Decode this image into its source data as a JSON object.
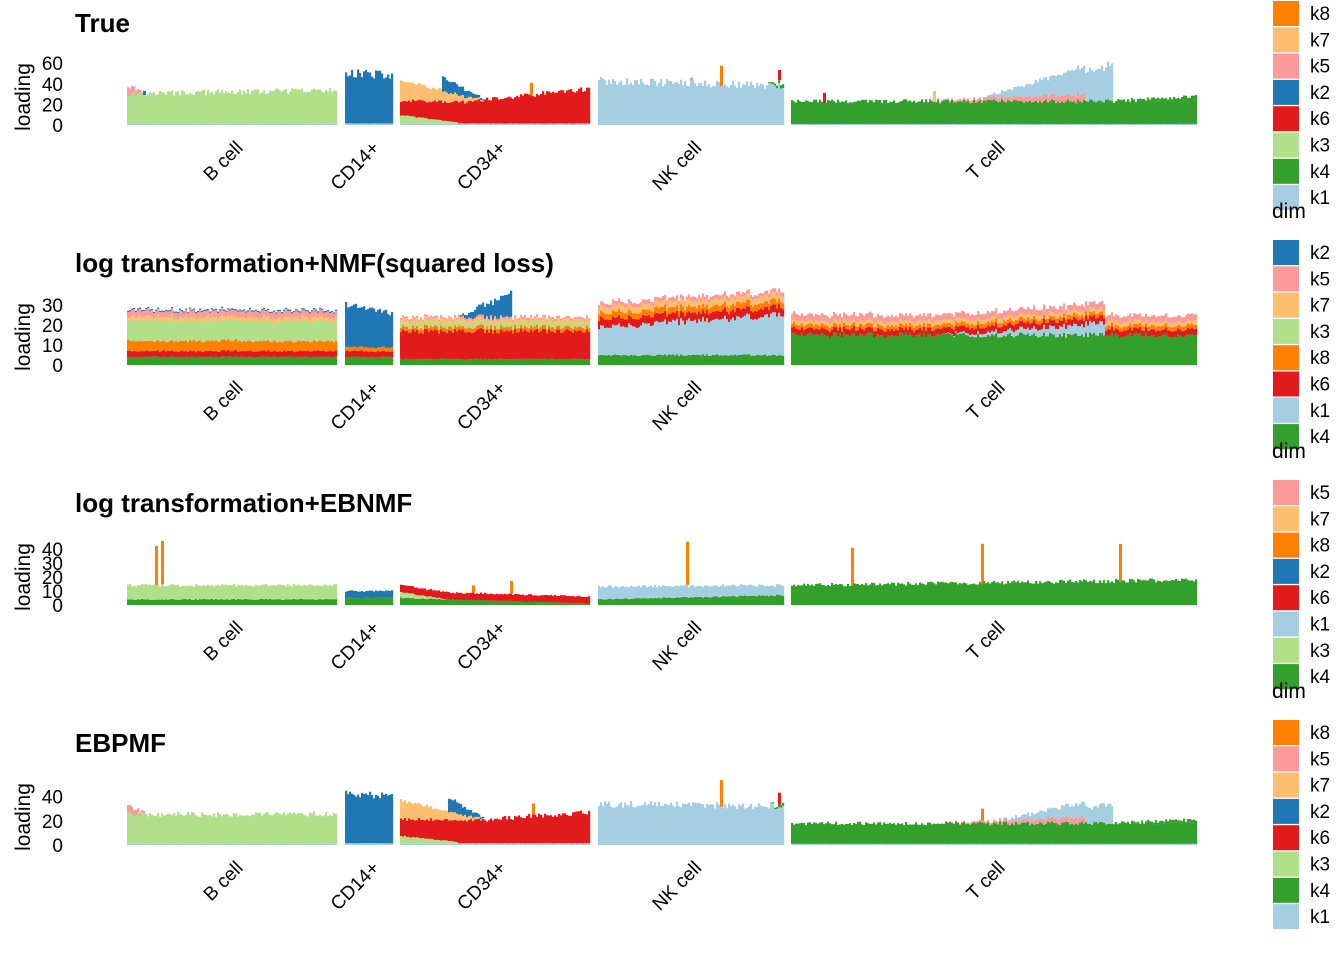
{
  "colors": {
    "k1": "#a6cee3",
    "k2": "#1f78b4",
    "k3": "#b2df8a",
    "k4": "#33a02c",
    "k5": "#fb9a99",
    "k6": "#e31a1c",
    "k7": "#fdbf6f",
    "k8": "#ff7f00"
  },
  "legend_title": "dim",
  "chart_data": [
    {
      "type": "bar",
      "stacked": true,
      "title": "True",
      "ylabel": "loading",
      "yticks": [
        "60",
        "40",
        "20",
        "0"
      ],
      "ylim": [
        0,
        68
      ],
      "groups": [
        "B cell",
        "CD14+",
        "CD34+",
        "NK cell",
        "T cell"
      ],
      "series_order": [
        "k1",
        "k4",
        "k3",
        "k6",
        "k2",
        "k5",
        "k7",
        "k8"
      ],
      "legend": [
        "k8",
        "k7",
        "k5",
        "k2",
        "k6",
        "k3",
        "k4",
        "k1"
      ],
      "group_profiles": {
        "B cell": [
          {
            "k": "k1",
            "v": 1.5
          },
          {
            "k": "k3",
            "v": [
              29,
              32
            ]
          },
          {
            "k": "k5",
            "v": [
              9,
              0
            ],
            "until": 0.08
          }
        ],
        "CD14+": [
          {
            "k": "k1",
            "v": 1.5
          },
          {
            "k": "k2",
            "v": [
              50,
              46
            ]
          }
        ],
        "CD34+": [
          {
            "k": "k1",
            "v": 1.5
          },
          {
            "k": "k3",
            "v": [
              8,
              1
            ],
            "until": 0.3
          },
          {
            "k": "k6",
            "v": [
              14,
              34
            ]
          },
          {
            "k": "k7",
            "v": [
              20,
              0
            ],
            "until": 0.45
          },
          {
            "k": "k2",
            "v": [
              14,
              0
            ],
            "from": 0.22,
            "until": 0.45
          }
        ],
        "NK cell": [
          {
            "k": "k1",
            "v": [
              43,
              38
            ]
          },
          {
            "k": "k4",
            "v": [
              0,
              4
            ],
            "from": 0.9
          }
        ],
        "T cell": [
          {
            "k": "k1",
            "v": 1
          },
          {
            "k": "k4",
            "v": 22
          },
          {
            "k": "k5",
            "v": [
              0,
              7
            ],
            "from": 0.3,
            "until": 0.72
          },
          {
            "k": "k1",
            "v": [
              0,
              35
            ],
            "from": 0.47,
            "until": 0.79
          },
          {
            "k": "k4",
            "v": [
              0,
              5
            ],
            "from": 0.79
          }
        ]
      },
      "spikes": [
        {
          "group": "B cell",
          "at": 0.08,
          "k": "k2",
          "v": 4
        },
        {
          "group": "NK cell",
          "at": 0.66,
          "k": "k8",
          "v": 20
        },
        {
          "group": "NK cell",
          "at": 0.5,
          "k": "k5",
          "v": 3
        },
        {
          "group": "NK cell",
          "at": 0.98,
          "k": "k6",
          "v": 10
        },
        {
          "group": "T cell",
          "at": 0.08,
          "k": "k6",
          "v": 10
        },
        {
          "group": "T cell",
          "at": 0.35,
          "k": "k7",
          "v": 10
        },
        {
          "group": "CD34+",
          "at": 0.69,
          "k": "k8",
          "v": 12
        }
      ]
    },
    {
      "type": "bar",
      "stacked": true,
      "title": "log transformation+NMF(squared loss)",
      "ylabel": "loading",
      "yticks": [
        "30",
        "20",
        "10",
        "0"
      ],
      "ylim": [
        0,
        35
      ],
      "groups": [
        "B cell",
        "CD14+",
        "CD34+",
        "NK cell",
        "T cell"
      ],
      "series_order": [
        "k4",
        "k1",
        "k6",
        "k8",
        "k3",
        "k7",
        "k5",
        "k2"
      ],
      "legend": [
        "k2",
        "k5",
        "k7",
        "k3",
        "k8",
        "k6",
        "k1",
        "k4"
      ],
      "group_profiles": {
        "B cell": [
          {
            "k": "k4",
            "v": 4
          },
          {
            "k": "k6",
            "v": 3
          },
          {
            "k": "k8",
            "v": 5
          },
          {
            "k": "k3",
            "v": 10
          },
          {
            "k": "k7",
            "v": 2
          },
          {
            "k": "k5",
            "v": 3
          },
          {
            "k": "k2",
            "v": 0.6
          }
        ],
        "CD14+": [
          {
            "k": "k4",
            "v": 4
          },
          {
            "k": "k6",
            "v": 3
          },
          {
            "k": "k8",
            "v": 2
          },
          {
            "k": "k2",
            "v": [
              21,
              17
            ]
          }
        ],
        "CD34+": [
          {
            "k": "k4",
            "v": 3
          },
          {
            "k": "k6",
            "v": 14
          },
          {
            "k": "k8",
            "v": 2
          },
          {
            "k": "k3",
            "v": 2
          },
          {
            "k": "k7",
            "v": 2
          },
          {
            "k": "k5",
            "v": 1
          },
          {
            "k": "k2",
            "v": [
              0,
              12
            ],
            "from": 0.3,
            "until": 0.58
          }
        ],
        "NK cell": [
          {
            "k": "k4",
            "v": 5
          },
          {
            "k": "k1",
            "v": [
              14,
              20
            ]
          },
          {
            "k": "k6",
            "v": 4
          },
          {
            "k": "k8",
            "v": 3
          },
          {
            "k": "k7",
            "v": 3
          },
          {
            "k": "k5",
            "v": 2
          }
        ],
        "T cell": [
          {
            "k": "k4",
            "v": 15
          },
          {
            "k": "k1",
            "v": [
              0,
              6
            ],
            "from": 0.37,
            "until": 0.77
          },
          {
            "k": "k6",
            "v": 3
          },
          {
            "k": "k8",
            "v": 2
          },
          {
            "k": "k7",
            "v": 2
          },
          {
            "k": "k5",
            "v": 3
          }
        ]
      },
      "spikes": []
    },
    {
      "type": "bar",
      "stacked": true,
      "title": "log transformation+EBNMF",
      "ylabel": "loading",
      "yticks": [
        "40",
        "30",
        "20",
        "10",
        "0"
      ],
      "ylim": [
        0,
        50
      ],
      "groups": [
        "B cell",
        "CD14+",
        "CD34+",
        "NK cell",
        "T cell"
      ],
      "series_order": [
        "k4",
        "k1",
        "k3",
        "k2",
        "k6",
        "k8",
        "k7",
        "k5"
      ],
      "legend": [
        "k5",
        "k7",
        "k8",
        "k2",
        "k6",
        "k1",
        "k3",
        "k4"
      ],
      "group_profiles": {
        "B cell": [
          {
            "k": "k4",
            "v": 4
          },
          {
            "k": "k3",
            "v": 10
          }
        ],
        "CD14+": [
          {
            "k": "k4",
            "v": 5
          },
          {
            "k": "k2",
            "v": 5
          }
        ],
        "CD34+": [
          {
            "k": "k4",
            "v": [
              5,
              1
            ]
          },
          {
            "k": "k3",
            "v": [
              4,
              0
            ],
            "until": 0.25
          },
          {
            "k": "k6",
            "v": 5
          }
        ],
        "NK cell": [
          {
            "k": "k4",
            "v": [
              4,
              7
            ]
          },
          {
            "k": "k1",
            "v": [
              9,
              7
            ]
          }
        ],
        "T cell": [
          {
            "k": "k4",
            "v": [
              14,
              18
            ]
          }
        ]
      },
      "spikes": [
        {
          "group": "B cell",
          "at": 0.14,
          "k": "k8",
          "v": 28
        },
        {
          "group": "B cell",
          "at": 0.17,
          "k": "k8",
          "v": 31
        },
        {
          "group": "CD34+",
          "at": 0.38,
          "k": "k8",
          "v": 5
        },
        {
          "group": "CD34+",
          "at": 0.58,
          "k": "k8",
          "v": 9
        },
        {
          "group": "NK cell",
          "at": 0.48,
          "k": "k8",
          "v": 31
        },
        {
          "group": "T cell",
          "at": 0.15,
          "k": "k8",
          "v": 27
        },
        {
          "group": "T cell",
          "at": 0.47,
          "k": "k8",
          "v": 29
        },
        {
          "group": "T cell",
          "at": 0.81,
          "k": "k8",
          "v": 27
        }
      ]
    },
    {
      "type": "bar",
      "stacked": true,
      "title": "EBPMF",
      "ylabel": "loading",
      "yticks": [
        "40",
        "20",
        "0"
      ],
      "ylim": [
        0,
        58
      ],
      "groups": [
        "B cell",
        "CD14+",
        "CD34+",
        "NK cell",
        "T cell"
      ],
      "series_order": [
        "k1",
        "k4",
        "k3",
        "k6",
        "k2",
        "k7",
        "k5",
        "k8"
      ],
      "legend": [
        "k8",
        "k5",
        "k7",
        "k2",
        "k6",
        "k3",
        "k4",
        "k1"
      ],
      "group_profiles": {
        "B cell": [
          {
            "k": "k1",
            "v": 1.5
          },
          {
            "k": "k3",
            "v": 24
          },
          {
            "k": "k5",
            "v": [
              7,
              0
            ],
            "until": 0.1
          }
        ],
        "CD14+": [
          {
            "k": "k1",
            "v": 1.5
          },
          {
            "k": "k2",
            "v": 40
          }
        ],
        "CD34+": [
          {
            "k": "k1",
            "v": 1.5
          },
          {
            "k": "k3",
            "v": [
              6,
              1
            ],
            "until": 0.3
          },
          {
            "k": "k6",
            "v": [
              14,
              26
            ]
          },
          {
            "k": "k7",
            "v": [
              16,
              0
            ],
            "until": 0.45
          },
          {
            "k": "k2",
            "v": [
              12,
              0
            ],
            "from": 0.25,
            "until": 0.45
          }
        ],
        "NK cell": [
          {
            "k": "k1",
            "v": [
              34,
              32
            ]
          },
          {
            "k": "k4",
            "v": [
              0,
              3
            ],
            "from": 0.92
          }
        ],
        "T cell": [
          {
            "k": "k1",
            "v": 1
          },
          {
            "k": "k4",
            "v": 17
          },
          {
            "k": "k5",
            "v": [
              0,
              5
            ],
            "from": 0.35,
            "until": 0.72
          },
          {
            "k": "k1",
            "v": [
              0,
              16
            ],
            "from": 0.5,
            "until": 0.79
          },
          {
            "k": "k4",
            "v": [
              0,
              3
            ],
            "from": 0.79
          }
        ]
      },
      "spikes": [
        {
          "group": "NK cell",
          "at": 0.66,
          "k": "k8",
          "v": 22
        },
        {
          "group": "NK cell",
          "at": 0.98,
          "k": "k6",
          "v": 10
        },
        {
          "group": "T cell",
          "at": 0.47,
          "k": "k8",
          "v": 10
        },
        {
          "group": "CD34+",
          "at": 0.7,
          "k": "k8",
          "v": 9
        }
      ]
    }
  ]
}
